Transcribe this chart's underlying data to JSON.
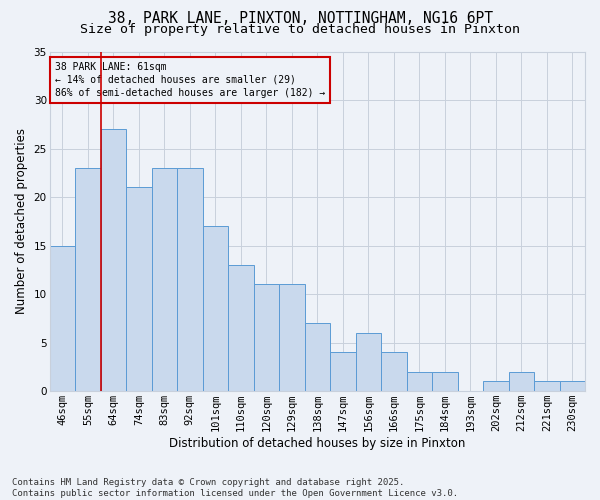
{
  "title1": "38, PARK LANE, PINXTON, NOTTINGHAM, NG16 6PT",
  "title2": "Size of property relative to detached houses in Pinxton",
  "xlabel": "Distribution of detached houses by size in Pinxton",
  "ylabel": "Number of detached properties",
  "categories": [
    "46sqm",
    "55sqm",
    "64sqm",
    "74sqm",
    "83sqm",
    "92sqm",
    "101sqm",
    "110sqm",
    "120sqm",
    "129sqm",
    "138sqm",
    "147sqm",
    "156sqm",
    "166sqm",
    "175sqm",
    "184sqm",
    "193sqm",
    "202sqm",
    "212sqm",
    "221sqm",
    "230sqm"
  ],
  "values": [
    15,
    23,
    27,
    21,
    23,
    23,
    17,
    13,
    11,
    11,
    7,
    4,
    6,
    4,
    2,
    2,
    0,
    1,
    2,
    1,
    1
  ],
  "bar_color": "#c9d9ed",
  "bar_edge_color": "#5b9bd5",
  "vline_x": 1.5,
  "vline_color": "#cc0000",
  "ylim": [
    0,
    35
  ],
  "yticks": [
    0,
    5,
    10,
    15,
    20,
    25,
    30,
    35
  ],
  "annotation_title": "38 PARK LANE: 61sqm",
  "annotation_line1": "← 14% of detached houses are smaller (29)",
  "annotation_line2": "86% of semi-detached houses are larger (182) →",
  "annotation_box_color": "#cc0000",
  "background_color": "#eef2f8",
  "footer1": "Contains HM Land Registry data © Crown copyright and database right 2025.",
  "footer2": "Contains public sector information licensed under the Open Government Licence v3.0.",
  "grid_color": "#c8d0dc",
  "title_fontsize": 10.5,
  "subtitle_fontsize": 9.5,
  "axis_fontsize": 8.5,
  "tick_fontsize": 7.5,
  "footer_fontsize": 6.5
}
